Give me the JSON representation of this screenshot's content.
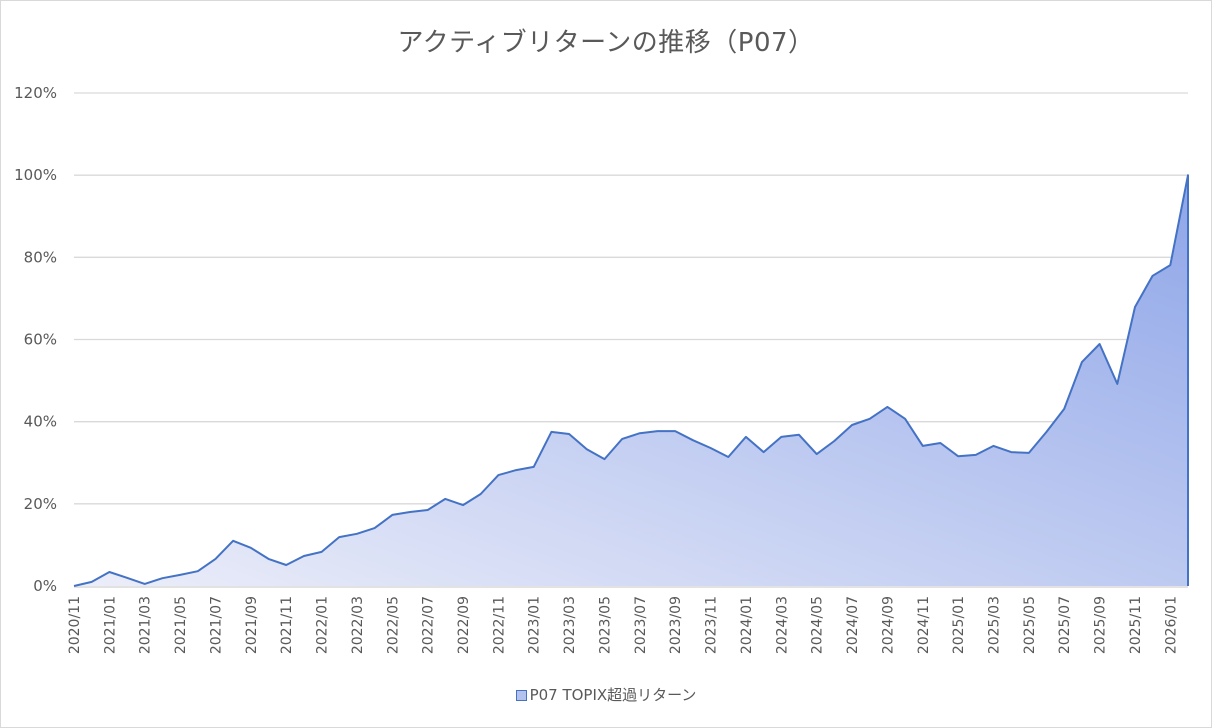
{
  "chart_data": {
    "type": "area",
    "title": "アクティブリターンの推移（P07）",
    "xlabel": "",
    "ylabel": "",
    "ylim": [
      0,
      120
    ],
    "y_ticks": [
      "0%",
      "20%",
      "40%",
      "60%",
      "80%",
      "100%",
      "120%"
    ],
    "grid": true,
    "legend_position": "bottom",
    "x_tick_labels": [
      "2020/11",
      "2021/01",
      "2021/03",
      "2021/05",
      "2021/07",
      "2021/09",
      "2021/11",
      "2022/01",
      "2022/03",
      "2022/05",
      "2022/07",
      "2022/09",
      "2022/11",
      "2023/01",
      "2023/03",
      "2023/05",
      "2023/07",
      "2023/09",
      "2023/11",
      "2024/01",
      "2024/03",
      "2024/05",
      "2024/07",
      "2024/09",
      "2024/11",
      "2025/01",
      "2025/03",
      "2025/05",
      "2025/07",
      "2025/09",
      "2025/11",
      "2026/01"
    ],
    "x": [
      "2020/11",
      "2020/12",
      "2021/01",
      "2021/02",
      "2021/03",
      "2021/04",
      "2021/05",
      "2021/06",
      "2021/07",
      "2021/08",
      "2021/09",
      "2021/10",
      "2021/11",
      "2021/12",
      "2022/01",
      "2022/02",
      "2022/03",
      "2022/04",
      "2022/05",
      "2022/06",
      "2022/07",
      "2022/08",
      "2022/09",
      "2022/10",
      "2022/11",
      "2022/12",
      "2023/01",
      "2023/02",
      "2023/03",
      "2023/04",
      "2023/05",
      "2023/06",
      "2023/07",
      "2023/08",
      "2023/09",
      "2023/10",
      "2023/11",
      "2023/12",
      "2024/01",
      "2024/02",
      "2024/03",
      "2024/04",
      "2024/05",
      "2024/06",
      "2024/07",
      "2024/08",
      "2024/09",
      "2024/10",
      "2024/11",
      "2024/12",
      "2025/01",
      "2025/02",
      "2025/03",
      "2025/04",
      "2025/05",
      "2025/06",
      "2025/07",
      "2025/08",
      "2025/09",
      "2025/10",
      "2025/11",
      "2025/12",
      "2026/01",
      "2026/02"
    ],
    "series": [
      {
        "name": "P07 TOPIX超過リターン",
        "unit": "%",
        "values": [
          0,
          1.0,
          3.4,
          2.0,
          0.5,
          1.9,
          2.7,
          3.6,
          6.6,
          11.0,
          9.3,
          6.6,
          5.1,
          7.3,
          8.3,
          11.9,
          12.7,
          14.1,
          17.3,
          18.0,
          18.5,
          21.2,
          19.7,
          22.4,
          27.0,
          28.2,
          29.0,
          37.5,
          37.0,
          33.3,
          30.9,
          35.8,
          37.2,
          37.7,
          37.7,
          35.5,
          33.6,
          31.4,
          36.3,
          32.6,
          36.3,
          36.8,
          32.1,
          35.3,
          39.2,
          40.7,
          43.6,
          40.7,
          34.1,
          34.8,
          31.6,
          31.9,
          34.1,
          32.6,
          32.4,
          37.5,
          43.1,
          54.5,
          58.9,
          49.2,
          67.9,
          75.5,
          78.1,
          100.0
        ]
      }
    ],
    "colors": {
      "line": "#4472c4",
      "fill_start": "#e6e9f8",
      "fill_end": "#8fa6e8",
      "grid": "#d9d9d9",
      "text": "#595959"
    }
  },
  "legend": {
    "label": "P07 TOPIX超過リターン"
  }
}
